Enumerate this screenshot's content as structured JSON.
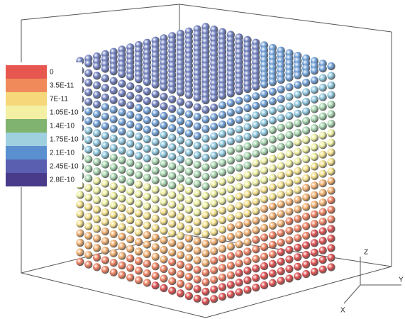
{
  "legend": {
    "labels": [
      "0",
      "3.5E-11",
      "7E-11",
      "1.05E-10",
      "1.4E-10",
      "1.75E-10",
      "2.1E-10",
      "2.45E-10",
      "2.8E-10"
    ]
  },
  "axes": {
    "z": "Z",
    "y": "Y",
    "x": "X"
  }
}
